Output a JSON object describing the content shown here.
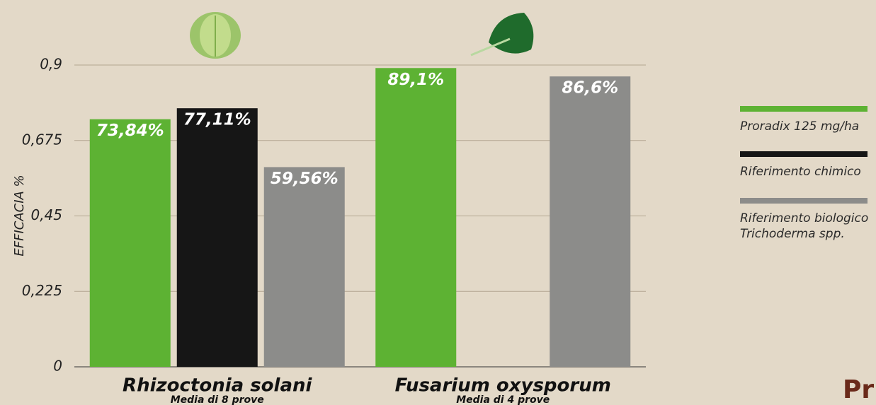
{
  "chart_data": {
    "type": "bar",
    "y_label": "EFFICACIA %",
    "categories": [
      "Rhizoctonia solani",
      "Fusarium oxysporum"
    ],
    "category_notes": [
      "Media di 8 prove",
      "Media di 4 prove"
    ],
    "series": [
      {
        "name": "Proradix 125 mg/ha",
        "color": "#5db233",
        "values": [
          0.7384,
          0.891
        ],
        "value_labels": [
          "73,84%",
          "89,1%"
        ]
      },
      {
        "name": "Riferimento chimico",
        "color": "#161616",
        "values": [
          0.7711,
          null
        ],
        "value_labels": [
          "77,11%",
          null
        ]
      },
      {
        "name": "Riferimento biologico\nTrichoderma spp.",
        "color": "#8c8c8a",
        "values": [
          0.5956,
          0.866
        ],
        "value_labels": [
          "59,56%",
          "86,6%"
        ]
      }
    ],
    "ylim": [
      0,
      0.9
    ],
    "yticks": [
      0,
      {
        "value": 0.225,
        "label": "0,225"
      },
      {
        "value": 0.45,
        "label": "0,45"
      },
      {
        "value": 0.675,
        "label": "0,675"
      },
      {
        "value": 0.9,
        "label": "0,9"
      }
    ],
    "grid": true,
    "legend": "right",
    "logo": "Pr"
  }
}
